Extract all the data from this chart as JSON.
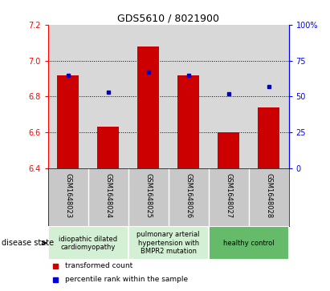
{
  "title": "GDS5610 / 8021900",
  "samples": [
    "GSM1648023",
    "GSM1648024",
    "GSM1648025",
    "GSM1648026",
    "GSM1648027",
    "GSM1648028"
  ],
  "bar_values": [
    6.92,
    6.63,
    7.08,
    6.92,
    6.6,
    6.74
  ],
  "bar_base": 6.4,
  "percentile_values": [
    65,
    53,
    67,
    65,
    52,
    57
  ],
  "bar_color": "#cc0000",
  "dot_color": "#0000cc",
  "ylim_left": [
    6.4,
    7.2
  ],
  "ylim_right": [
    0,
    100
  ],
  "yticks_left": [
    6.4,
    6.6,
    6.8,
    7.0,
    7.2
  ],
  "yticks_right": [
    0,
    25,
    50,
    75,
    100
  ],
  "ytick_labels_right": [
    "0",
    "25",
    "50",
    "75",
    "100%"
  ],
  "grid_values": [
    6.6,
    6.8,
    7.0
  ],
  "disease_groups": [
    {
      "label": "idiopathic dilated\ncardiomyopathy",
      "color": "#d4f0d4",
      "indices": [
        0,
        1
      ]
    },
    {
      "label": "pulmonary arterial\nhypertension with\nBMPR2 mutation",
      "color": "#d4f0d4",
      "indices": [
        2,
        3
      ]
    },
    {
      "label": "healthy control",
      "color": "#66bb6a",
      "indices": [
        4,
        5
      ]
    }
  ],
  "legend_items": [
    {
      "label": "transformed count",
      "color": "#cc0000"
    },
    {
      "label": "percentile rank within the sample",
      "color": "#0000cc"
    }
  ],
  "disease_state_label": "disease state",
  "bar_width": 0.55,
  "background_color": "#ffffff",
  "plot_bg_color": "#d8d8d8",
  "sample_bg_color": "#c8c8c8",
  "title_fontsize": 9,
  "tick_fontsize": 7,
  "sample_fontsize": 6,
  "disease_fontsize": 6,
  "legend_fontsize": 6.5
}
